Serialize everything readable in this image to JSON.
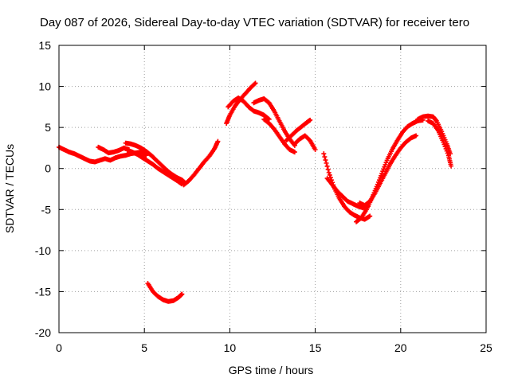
{
  "chart_data": {
    "type": "scatter",
    "title": "Day 087 of 2026, Sidereal Day-to-day VTEC variation (SDTVAR) for receiver tero",
    "xlabel": "GPS time / hours",
    "ylabel": "SDTVAR / TECUs",
    "xlim": [
      0,
      25
    ],
    "ylim": [
      -20,
      15
    ],
    "xticks": [
      0,
      5,
      10,
      15,
      20,
      25
    ],
    "xtick_labels": [
      "0",
      "5",
      "10",
      "15",
      "20",
      "25"
    ],
    "yticks": [
      -20,
      -15,
      -10,
      -5,
      0,
      5,
      10,
      15
    ],
    "ytick_labels": [
      "-20",
      "-15",
      "-10",
      "-5",
      "0",
      "5",
      "10",
      "15"
    ],
    "grid": true,
    "legend": "none",
    "marker": "plus",
    "color": "#ff0000",
    "series": [
      {
        "name": "arc-1",
        "x": [
          0.0,
          0.3,
          0.6,
          0.9,
          1.2,
          1.5,
          1.8,
          2.1,
          2.4,
          2.7,
          3.0,
          3.3,
          3.6,
          3.9,
          4.2,
          4.5,
          4.8,
          5.1
        ],
        "y": [
          2.6,
          2.3,
          2.0,
          1.8,
          1.5,
          1.2,
          0.9,
          0.8,
          1.0,
          1.2,
          1.0,
          1.3,
          1.5,
          1.6,
          1.8,
          1.9,
          2.0,
          1.6
        ]
      },
      {
        "name": "arc-2",
        "x": [
          2.3,
          2.6,
          2.9,
          3.2,
          3.5,
          3.8,
          4.1
        ],
        "y": [
          2.6,
          2.3,
          1.9,
          2.0,
          2.2,
          2.5,
          2.3
        ]
      },
      {
        "name": "arc-3",
        "x": [
          3.9,
          4.2,
          4.5,
          4.8,
          5.1,
          5.4,
          5.7,
          6.0,
          6.3,
          6.6,
          6.9,
          7.2,
          7.4
        ],
        "y": [
          3.1,
          3.0,
          2.8,
          2.5,
          2.1,
          1.6,
          1.0,
          0.4,
          -0.2,
          -0.7,
          -1.1,
          -1.4,
          -1.8
        ]
      },
      {
        "name": "arc-4",
        "x": [
          4.0,
          4.3,
          4.6,
          4.9,
          5.2,
          5.5,
          5.8,
          6.1,
          6.4,
          6.7,
          7.0,
          7.2
        ],
        "y": [
          2.2,
          2.0,
          1.7,
          1.3,
          0.9,
          0.5,
          0.0,
          -0.4,
          -0.8,
          -1.2,
          -1.6,
          -1.9
        ]
      },
      {
        "name": "arc-5",
        "x": [
          7.3,
          7.6,
          7.9,
          8.2,
          8.5,
          8.8,
          9.1,
          9.3
        ],
        "y": [
          -2.0,
          -1.5,
          -0.8,
          0.0,
          0.8,
          1.5,
          2.4,
          3.3
        ]
      },
      {
        "name": "arc-6",
        "x": [
          5.2,
          5.5,
          5.8,
          6.1,
          6.4,
          6.7,
          7.0,
          7.2
        ],
        "y": [
          -14.0,
          -15.0,
          -15.6,
          -16.0,
          -16.2,
          -16.1,
          -15.7,
          -15.3
        ]
      },
      {
        "name": "arc-7",
        "x": [
          9.8,
          10.0,
          10.3,
          10.6,
          10.9,
          11.2,
          11.5
        ],
        "y": [
          5.5,
          6.5,
          7.6,
          8.4,
          9.1,
          9.8,
          10.4
        ]
      },
      {
        "name": "arc-8",
        "x": [
          9.9,
          10.2,
          10.5,
          10.8,
          11.1,
          11.4,
          11.7,
          12.0,
          12.3
        ],
        "y": [
          7.5,
          8.2,
          8.6,
          8.2,
          7.5,
          7.0,
          6.8,
          6.5,
          6.0
        ]
      },
      {
        "name": "arc-9",
        "x": [
          11.4,
          11.7,
          12.0,
          12.3,
          12.6,
          12.9,
          13.2,
          13.5,
          13.8
        ],
        "y": [
          8.0,
          8.3,
          8.5,
          8.0,
          7.0,
          5.8,
          4.6,
          3.6,
          2.8
        ]
      },
      {
        "name": "arc-10",
        "x": [
          12.0,
          12.3,
          12.6,
          12.9,
          13.2,
          13.5,
          13.8
        ],
        "y": [
          6.0,
          5.5,
          4.8,
          3.9,
          3.0,
          2.3,
          2.0
        ]
      },
      {
        "name": "arc-11",
        "x": [
          13.8,
          14.1,
          14.4,
          14.7,
          15.0
        ],
        "y": [
          3.0,
          3.6,
          4.0,
          3.4,
          2.3
        ]
      },
      {
        "name": "arc-12",
        "x": [
          13.3,
          13.6,
          13.9,
          14.2,
          14.5,
          14.7
        ],
        "y": [
          3.4,
          4.0,
          4.6,
          5.1,
          5.6,
          5.9
        ]
      },
      {
        "name": "arc-13",
        "x": [
          15.5,
          15.8,
          16.1,
          16.4,
          16.7,
          17.0,
          17.3,
          17.6,
          17.9,
          18.2
        ],
        "y": [
          1.8,
          -0.5,
          -2.3,
          -3.6,
          -4.6,
          -5.3,
          -5.7,
          -6.0,
          -6.2,
          -5.8
        ]
      },
      {
        "name": "arc-14",
        "x": [
          15.7,
          16.0,
          16.3,
          16.6,
          16.9,
          17.2,
          17.5,
          17.8,
          18.1
        ],
        "y": [
          -1.2,
          -2.0,
          -2.8,
          -3.4,
          -4.0,
          -4.3,
          -4.6,
          -4.8,
          -4.6
        ]
      },
      {
        "name": "arc-15",
        "x": [
          17.4,
          17.7,
          18.0,
          18.3,
          18.6,
          18.9,
          19.2,
          19.5,
          19.8,
          20.1,
          20.4,
          20.7,
          21.0,
          21.3
        ],
        "y": [
          -6.5,
          -6.0,
          -5.0,
          -3.7,
          -2.2,
          -0.6,
          1.0,
          2.3,
          3.4,
          4.4,
          5.1,
          5.5,
          5.8,
          5.9
        ]
      },
      {
        "name": "arc-16",
        "x": [
          17.6,
          17.9,
          18.2,
          18.5,
          18.8,
          19.1,
          19.4,
          19.7,
          20.0,
          20.3,
          20.6,
          20.9
        ],
        "y": [
          -4.2,
          -4.5,
          -4.0,
          -3.0,
          -1.8,
          -0.6,
          0.6,
          1.6,
          2.5,
          3.2,
          3.7,
          4.0
        ]
      },
      {
        "name": "arc-17",
        "x": [
          21.0,
          21.3,
          21.6,
          21.9,
          22.1,
          22.4,
          22.7,
          22.9
        ],
        "y": [
          6.0,
          6.3,
          6.4,
          6.3,
          5.8,
          4.5,
          3.0,
          1.8
        ]
      },
      {
        "name": "arc-18",
        "x": [
          21.6,
          21.9,
          22.2,
          22.5,
          22.8,
          22.95
        ],
        "y": [
          5.8,
          5.5,
          4.6,
          3.2,
          1.6,
          0.3
        ]
      }
    ]
  }
}
